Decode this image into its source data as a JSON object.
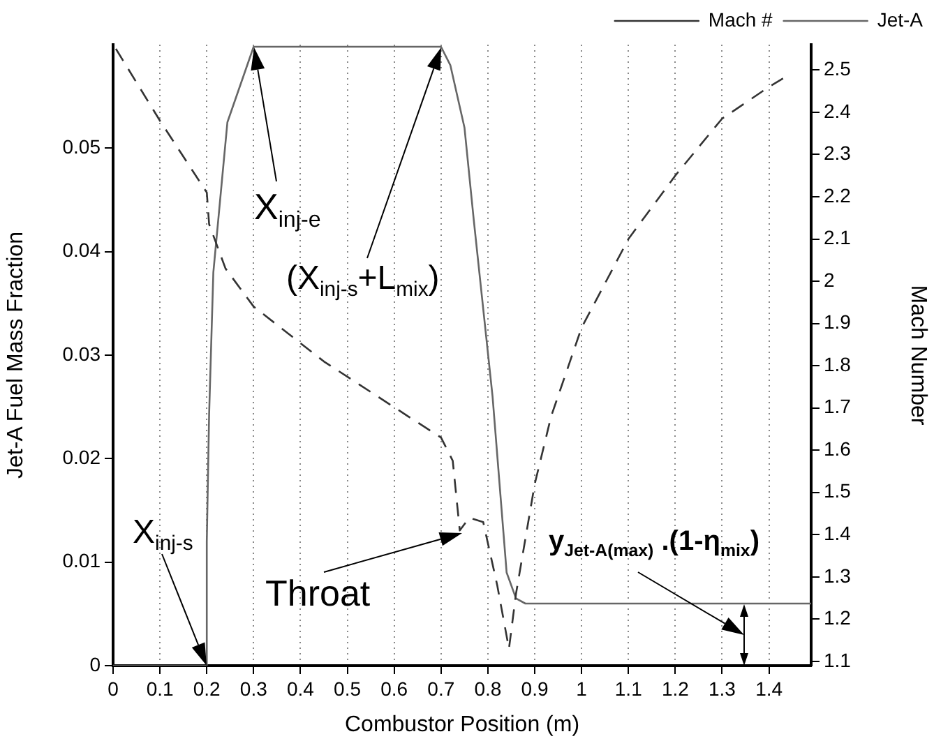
{
  "chart_data": {
    "type": "line",
    "xlabel": "Combustor Position (m)",
    "ylabel": "Jet-A Fuel Mass Fraction",
    "y2label": "Mach Number",
    "xlim": [
      0,
      1.49
    ],
    "xticks": [
      0,
      0.1,
      0.2,
      0.3,
      0.4,
      0.5,
      0.6,
      0.7,
      0.8,
      0.9,
      1,
      1.1,
      1.2,
      1.3,
      1.4
    ],
    "ylim": [
      0,
      0.06
    ],
    "yticks": [
      0,
      0.01,
      0.02,
      0.03,
      0.04,
      0.05
    ],
    "y2lim": [
      1.09,
      2.56
    ],
    "y2ticks": [
      1.1,
      1.2,
      1.3,
      1.4,
      1.5,
      1.6,
      1.7,
      1.8,
      1.9,
      2,
      2.1,
      2.2,
      2.3,
      2.4,
      2.5
    ],
    "grid": "x",
    "legend": "top right",
    "marker": "none",
    "series": [
      {
        "name": "Mach #",
        "color": "#333333",
        "line_style": "dashed",
        "axis": "y2",
        "x": [
          0.006,
          0.1,
          0.2,
          0.205,
          0.24,
          0.3,
          0.45,
          0.63,
          0.7,
          0.725,
          0.74,
          0.76,
          0.79,
          0.82,
          0.845,
          0.86,
          0.9,
          0.935,
          1.0,
          1.1,
          1.2,
          1.3,
          1.4,
          1.43
        ],
        "values": [
          2.55,
          2.38,
          2.21,
          2.135,
          2.03,
          1.94,
          1.81,
          1.68,
          1.63,
          1.575,
          1.41,
          1.44,
          1.43,
          1.28,
          1.13,
          1.26,
          1.52,
          1.68,
          1.89,
          2.1,
          2.25,
          2.385,
          2.46,
          2.48
        ]
      },
      {
        "name": "Jet-A",
        "color": "#666666",
        "line_style": "solid",
        "x": [
          0,
          0.2,
          0.2,
          0.205,
          0.214,
          0.244,
          0.3,
          0.7,
          0.72,
          0.75,
          0.77,
          0.81,
          0.84,
          0.86,
          0.88,
          1.49
        ],
        "values": [
          0,
          0,
          0.012,
          0.0243,
          0.038,
          0.0525,
          0.0598,
          0.0598,
          0.058,
          0.052,
          0.043,
          0.026,
          0.009,
          0.0065,
          0.006,
          0.006
        ]
      }
    ],
    "annotations": [
      "X$_{inj-e}$",
      "(X$_{inj-s}$+L$_{mix}$)",
      "X$_{inj-s}$",
      "Throat",
      "y$_{Jet-A(max)}$ .(1-η$_{mix}$)"
    ]
  }
}
